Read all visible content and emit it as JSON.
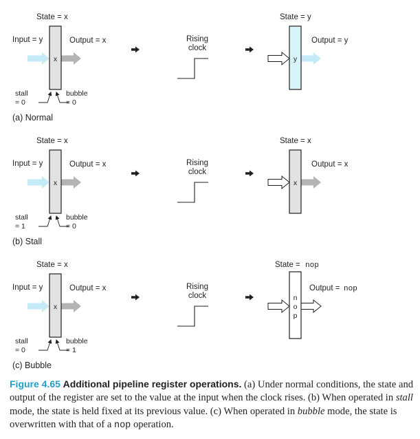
{
  "diagram": {
    "rising_clock": "Rising\nclock",
    "panels": [
      {
        "id": "normal",
        "label": "(a) Normal",
        "left": {
          "state": "State = x",
          "input": "Input = y",
          "output": "Output = x",
          "value": "x",
          "stall": "stall\n= 0",
          "bubble": "bubble\n= 0"
        },
        "right": {
          "state": "State = y",
          "output": "Output = y",
          "value": "y"
        }
      },
      {
        "id": "stall",
        "label": "(b) Stall",
        "left": {
          "state": "State = x",
          "input": "Input = y",
          "output": "Output = x",
          "value": "x",
          "stall": "stall\n= 1",
          "bubble": "bubble\n= 0"
        },
        "right": {
          "state": "State = x",
          "output": "Output = x",
          "value": "x"
        }
      },
      {
        "id": "bubble",
        "label": "(c) Bubble",
        "left": {
          "state": "State = x",
          "input": "Input = y",
          "output": "Output = x",
          "value": "x",
          "stall": "stall\n= 0",
          "bubble": "bubble\n= 1"
        },
        "right": {
          "state_prefix": "State = ",
          "state_code": "nop",
          "output_prefix": "Output = ",
          "output_code": "nop",
          "value": "n\no\np"
        }
      }
    ]
  },
  "caption": {
    "figure_number": "Figure 4.65",
    "title": "Additional pipeline register operations.",
    "s1": " (a) Under normal conditions, the state and output of the register are set to the value at the input when the clock rises. (b) When operated in ",
    "em1": "stall",
    "s2": " mode, the state is held fixed at its previous value. (c) When operated in ",
    "em2": "bubble",
    "s3": " mode, the state is overwritten with that of a ",
    "code1": "nop",
    "s4": " operation."
  },
  "colors": {
    "register_gray": "#e2e2e2",
    "register_blue": "#d9f3fb",
    "arrow_gray": "#b4b4b4",
    "arrow_blue": "#c6ebf8",
    "caption_accent": "#1fa0c8"
  }
}
